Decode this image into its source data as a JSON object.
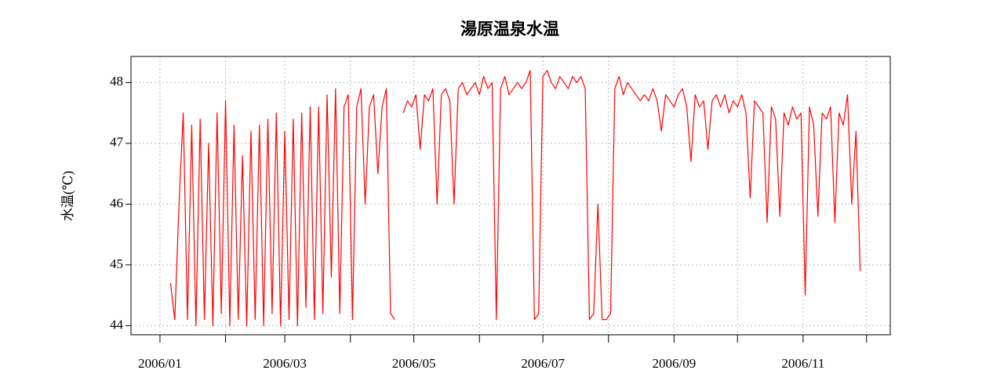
{
  "chart_data": {
    "type": "line",
    "title": "湯原温泉水温",
    "y_label": "水温(℃)",
    "x": [
      5,
      7,
      9,
      11,
      13,
      15,
      17,
      19,
      21,
      23,
      25,
      27,
      29,
      31,
      33,
      35,
      37,
      39,
      41,
      43,
      45,
      47,
      49,
      51,
      53,
      55,
      57,
      59,
      61,
      63,
      65,
      67,
      69,
      71,
      73,
      75,
      77,
      79,
      81,
      83,
      85,
      87,
      89,
      91,
      93,
      95,
      97,
      99,
      101,
      103,
      105,
      107,
      109,
      111,
      113,
      115,
      117,
      119,
      121,
      123,
      125,
      127,
      129,
      131,
      133,
      135,
      137,
      139,
      141,
      143,
      145,
      147,
      149,
      151,
      153,
      155,
      157,
      159,
      161,
      163,
      165,
      167,
      169,
      171,
      173,
      175,
      177,
      179,
      181,
      183,
      185,
      187,
      189,
      191,
      193,
      195,
      197,
      199,
      201,
      203,
      205,
      207,
      209,
      211,
      213,
      215,
      217,
      219,
      221,
      223,
      225,
      227,
      229,
      231,
      233,
      235,
      237,
      239,
      241,
      243,
      245,
      247,
      249,
      251,
      253,
      255,
      257,
      259,
      261,
      263,
      265,
      267,
      269,
      271,
      273,
      275,
      277,
      279,
      281,
      283,
      285,
      287,
      289,
      291,
      293,
      295,
      297,
      299,
      301,
      303,
      305,
      307,
      309,
      311,
      313,
      315,
      317,
      319,
      321,
      323,
      325,
      327,
      329,
      331
    ],
    "series": [
      {
        "name": "水温",
        "color": "#ff0000",
        "values": [
          44.7,
          44.1,
          46.0,
          47.5,
          44.1,
          47.3,
          44.0,
          47.4,
          44.1,
          47.0,
          44.0,
          47.5,
          44.2,
          47.7,
          44.0,
          47.3,
          44.1,
          46.8,
          44.0,
          47.2,
          44.1,
          47.3,
          44.0,
          47.4,
          44.2,
          47.5,
          44.0,
          47.2,
          44.1,
          47.4,
          44.0,
          47.5,
          44.3,
          47.6,
          44.1,
          47.6,
          44.2,
          47.8,
          44.8,
          47.9,
          44.2,
          47.6,
          47.8,
          44.1,
          47.6,
          47.9,
          46.0,
          47.6,
          47.8,
          46.5,
          47.6,
          47.9,
          44.2,
          44.1,
          null,
          47.5,
          47.7,
          47.6,
          47.8,
          46.9,
          47.8,
          47.7,
          47.9,
          46.0,
          47.8,
          47.9,
          47.7,
          46.0,
          47.9,
          48.0,
          47.8,
          47.9,
          48.0,
          47.8,
          48.1,
          47.9,
          48.0,
          44.1,
          47.9,
          48.1,
          47.8,
          47.9,
          48.0,
          47.9,
          48.0,
          48.2,
          44.1,
          44.2,
          48.1,
          48.2,
          48.0,
          47.9,
          48.1,
          48.0,
          47.9,
          48.1,
          48.0,
          48.1,
          47.9,
          44.1,
          44.2,
          46.0,
          44.1,
          44.1,
          44.2,
          47.9,
          48.1,
          47.8,
          48.0,
          47.9,
          47.8,
          47.7,
          47.8,
          47.7,
          47.9,
          47.7,
          47.2,
          47.8,
          47.7,
          47.6,
          47.8,
          47.9,
          47.6,
          46.7,
          47.8,
          47.6,
          47.7,
          46.9,
          47.7,
          47.8,
          47.6,
          47.8,
          47.5,
          47.7,
          47.6,
          47.8,
          47.5,
          46.1,
          47.7,
          47.6,
          47.5,
          45.7,
          47.6,
          47.4,
          45.8,
          47.5,
          47.3,
          47.6,
          47.4,
          47.5,
          44.5,
          47.6,
          47.3,
          45.8,
          47.5,
          47.4,
          47.6,
          45.7,
          47.5,
          47.3,
          47.8,
          46.0,
          47.2,
          44.9
        ]
      }
    ],
    "xlim": [
      -13.7,
      345.2
    ],
    "xticks": [
      {
        "value": 0,
        "label": "2006/01"
      },
      {
        "value": 31,
        "label": null
      },
      {
        "value": 59,
        "label": "2006/03"
      },
      {
        "value": 90,
        "label": null
      },
      {
        "value": 120,
        "label": "2006/05"
      },
      {
        "value": 151,
        "label": null
      },
      {
        "value": 181,
        "label": "2006/07"
      },
      {
        "value": 212,
        "label": null
      },
      {
        "value": 243,
        "label": "2006/09"
      },
      {
        "value": 273,
        "label": null
      },
      {
        "value": 304,
        "label": "2006/11"
      },
      {
        "value": 334,
        "label": null
      }
    ],
    "ylim": [
      43.85,
      48.43
    ],
    "yticks": [
      44,
      45,
      46,
      47,
      48
    ],
    "grid": true
  }
}
